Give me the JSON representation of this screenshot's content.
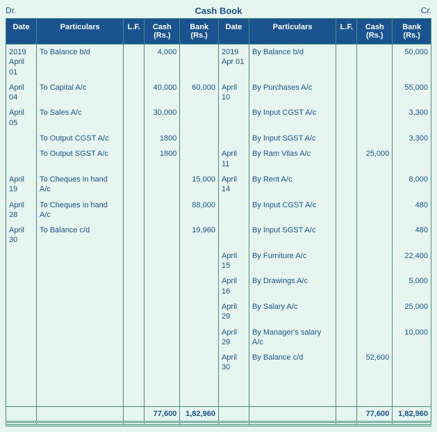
{
  "title": "Cash Book",
  "dr_label": "Dr.",
  "cr_label": "Cr.",
  "headers": {
    "date": "Date",
    "particulars": "Particulars",
    "lf": "L.F.",
    "cash": "Cash (Rs.)",
    "bank": "Bank (Rs.)"
  },
  "colors": {
    "background": "#e6f5f0",
    "header_bg": "#1a5490",
    "header_text": "#ffffff",
    "border": "#4a8c7a",
    "text": "#1a5490"
  },
  "debit_rows": [
    {
      "date": "2019 April 01",
      "part": "To Balance b/d",
      "cash": "4,000",
      "bank": ""
    },
    {
      "date": "April 04",
      "part": "To Capital A/c",
      "cash": "40,000",
      "bank": "60,000"
    },
    {
      "date": "April 05",
      "part": "To Sales A/c",
      "cash": "30,000",
      "bank": ""
    },
    {
      "date": "",
      "part": "To Output CGST A/c",
      "cash": "1800",
      "bank": ""
    },
    {
      "date": "",
      "part": "To Output SGST A/c",
      "cash": "1800",
      "bank": ""
    },
    {
      "date": "April 19",
      "part": "To Cheques in hand A/c",
      "cash": "",
      "bank": "15,000"
    },
    {
      "date": "April 28",
      "part": "To Cheques in hand A/c",
      "cash": "",
      "bank": "88,000"
    },
    {
      "date": "April 30",
      "part": "To Balance c/d",
      "cash": "",
      "bank": "19,960"
    },
    {
      "date": "",
      "part": "",
      "cash": "",
      "bank": ""
    },
    {
      "date": "",
      "part": "",
      "cash": "",
      "bank": ""
    },
    {
      "date": "",
      "part": "",
      "cash": "",
      "bank": ""
    },
    {
      "date": "",
      "part": "",
      "cash": "",
      "bank": ""
    },
    {
      "date": "",
      "part": "",
      "cash": "",
      "bank": ""
    },
    {
      "date": "",
      "part": "",
      "cash": "",
      "bank": ""
    },
    {
      "date": "",
      "part": "",
      "cash": "",
      "bank": ""
    }
  ],
  "credit_rows": [
    {
      "date": "2019 Apr 01",
      "part": "By Balance b/d",
      "cash": "",
      "bank": "50,000"
    },
    {
      "date": "April 10",
      "part": "By Purchases A/c",
      "cash": "",
      "bank": "55,000"
    },
    {
      "date": "",
      "part": "By Input CGST A/c",
      "cash": "",
      "bank": "3,300"
    },
    {
      "date": "",
      "part": "By Input SGST A/c",
      "cash": "",
      "bank": "3,300"
    },
    {
      "date": "April 11",
      "part": "By Ram Vilas A/c",
      "cash": "25,000",
      "bank": ""
    },
    {
      "date": "April 14",
      "part": "By Rent A/c",
      "cash": "",
      "bank": "8,000"
    },
    {
      "date": "",
      "part": "By Input CGST A/c",
      "cash": "",
      "bank": "480"
    },
    {
      "date": "",
      "part": "By Input SGST A/c",
      "cash": "",
      "bank": "480"
    },
    {
      "date": "April 15",
      "part": "By Furniture A/c",
      "cash": "",
      "bank": "22,400"
    },
    {
      "date": "April 16",
      "part": "By Drawings A/c",
      "cash": "",
      "bank": "5,000"
    },
    {
      "date": "April 29",
      "part": "By Salary A/c",
      "cash": "",
      "bank": "25,000"
    },
    {
      "date": "April 29",
      "part": "By Manager's salary A/c",
      "cash": "",
      "bank": "10,000"
    },
    {
      "date": "April 30",
      "part": "By Balance c/d",
      "cash": "52,600",
      "bank": ""
    },
    {
      "date": "",
      "part": "",
      "cash": "",
      "bank": ""
    },
    {
      "date": "",
      "part": "",
      "cash": "",
      "bank": ""
    }
  ],
  "totals": {
    "dr_cash": "77,600",
    "dr_bank": "1,82,960",
    "cr_cash": "77,600",
    "cr_bank": "1,82,960"
  }
}
